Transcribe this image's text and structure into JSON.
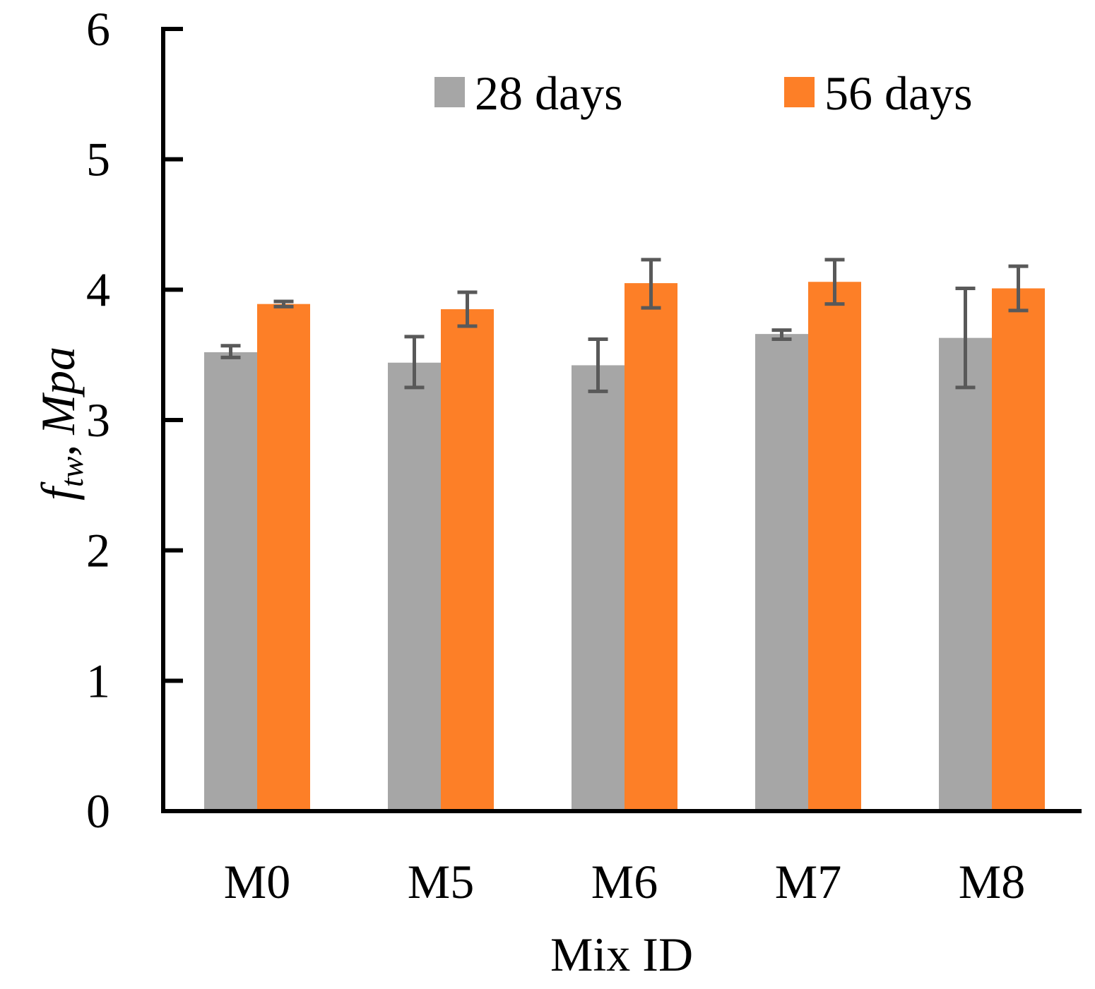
{
  "chart_data": {
    "type": "bar",
    "title": "",
    "categories": [
      "M0",
      "M5",
      "M6",
      "M7",
      "M8"
    ],
    "series": [
      {
        "name": "28 days",
        "color": "#a6a6a6",
        "values": [
          3.52,
          3.44,
          3.42,
          3.66,
          3.63
        ],
        "error_low": [
          3.48,
          3.25,
          3.22,
          3.62,
          3.25
        ],
        "error_high": [
          3.57,
          3.64,
          3.62,
          3.69,
          4.01
        ]
      },
      {
        "name": "56 days",
        "color": "#fd7f27",
        "values": [
          3.89,
          3.85,
          4.05,
          4.06,
          4.01
        ],
        "error_low": [
          3.87,
          3.72,
          3.86,
          3.89,
          3.84
        ],
        "error_high": [
          3.91,
          3.98,
          4.23,
          4.23,
          4.18
        ]
      }
    ],
    "xlabel": "Mix ID",
    "ylabel": {
      "symbol": "f",
      "subscript": "tw",
      "separator": ",",
      "unit": "Mpa"
    },
    "ylim": [
      0,
      6
    ],
    "yticks": [
      "0",
      "1",
      "2",
      "3",
      "4",
      "5",
      "6"
    ],
    "error_bar_color": "#595959",
    "axis_color": "#000000",
    "grid": false,
    "legend_position": "top"
  }
}
